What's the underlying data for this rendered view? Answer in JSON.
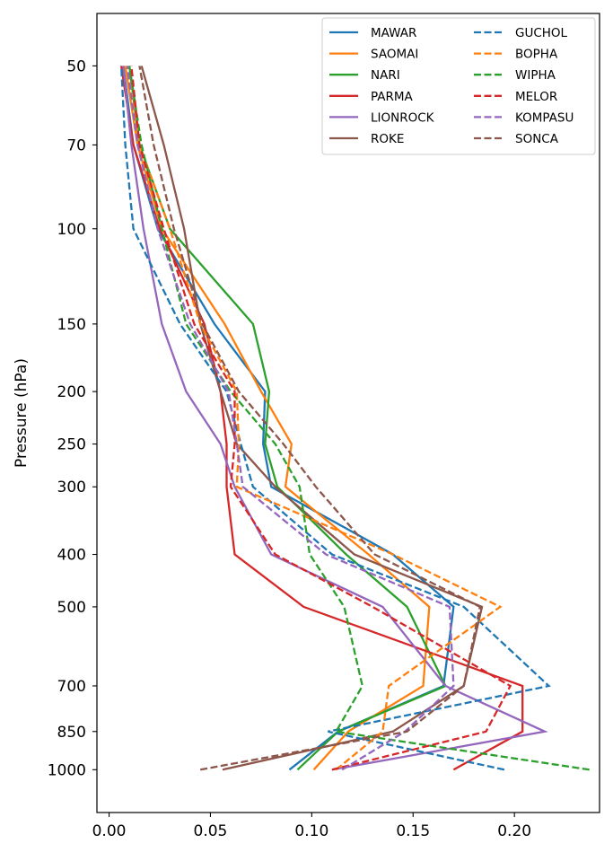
{
  "chart_data": {
    "type": "line",
    "title": "",
    "xlabel": "",
    "ylabel": "Pressure (hPa)",
    "xlim": [
      -0.006,
      0.242
    ],
    "ylim": [
      1200,
      40
    ],
    "yscale": "log",
    "xticks": [
      0.0,
      0.05,
      0.1,
      0.15,
      0.2
    ],
    "xtick_labels": [
      "0.00",
      "0.05",
      "0.10",
      "0.15",
      "0.20"
    ],
    "yticks": [
      50,
      70,
      100,
      150,
      200,
      250,
      300,
      400,
      500,
      700,
      850,
      1000
    ],
    "ytick_labels": [
      "50",
      "70",
      "100",
      "150",
      "200",
      "250",
      "300",
      "400",
      "500",
      "700",
      "850",
      "1000"
    ],
    "grid": false,
    "legend": {
      "placement": "top-right",
      "columns": 2
    },
    "pressure_levels": [
      1000,
      850,
      700,
      500,
      400,
      300,
      250,
      200,
      150,
      100,
      70,
      50
    ],
    "series": [
      {
        "name": "MAWAR",
        "color": "#1f77b4",
        "linestyle": "solid",
        "values": [
          0.089,
          0.113,
          0.165,
          0.17,
          0.14,
          0.08,
          0.076,
          0.077,
          0.052,
          0.024,
          0.012,
          0.007
        ]
      },
      {
        "name": "SAOMAI",
        "color": "#ff7f0e",
        "linestyle": "solid",
        "values": [
          0.101,
          0.118,
          0.155,
          0.158,
          0.128,
          0.087,
          0.09,
          0.075,
          0.057,
          0.026,
          0.014,
          0.008
        ]
      },
      {
        "name": "NARI",
        "color": "#2ca02c",
        "linestyle": "solid",
        "values": [
          0.093,
          0.113,
          0.166,
          0.147,
          0.117,
          0.083,
          0.077,
          0.079,
          0.071,
          0.03,
          0.015,
          0.01
        ]
      },
      {
        "name": "PARMA",
        "color": "#d62728",
        "linestyle": "solid",
        "values": [
          0.17,
          0.204,
          0.204,
          0.096,
          0.062,
          0.058,
          0.058,
          0.055,
          0.047,
          0.025,
          0.012,
          0.006
        ]
      },
      {
        "name": "LIONROCK",
        "color": "#9467bd",
        "linestyle": "solid",
        "values": [
          0.11,
          0.215,
          0.166,
          0.135,
          0.08,
          0.062,
          0.055,
          0.038,
          0.026,
          0.017,
          0.011,
          0.007
        ]
      },
      {
        "name": "ROKE",
        "color": "#8c564b",
        "linestyle": "solid",
        "values": [
          0.056,
          0.14,
          0.175,
          0.184,
          0.121,
          0.082,
          0.063,
          0.055,
          0.045,
          0.037,
          0.027,
          0.016
        ]
      },
      {
        "name": "GUCHOL",
        "color": "#1f77b4",
        "linestyle": "dashed",
        "values": [
          0.195,
          0.108,
          0.217,
          0.175,
          0.11,
          0.071,
          0.065,
          0.058,
          0.035,
          0.012,
          0.008,
          0.006
        ]
      },
      {
        "name": "BOPHA",
        "color": "#ff7f0e",
        "linestyle": "dashed",
        "values": [
          0.112,
          0.135,
          0.138,
          0.193,
          0.14,
          0.063,
          0.064,
          0.063,
          0.045,
          0.03,
          0.015,
          0.009
        ]
      },
      {
        "name": "WIPHA",
        "color": "#2ca02c",
        "linestyle": "dashed",
        "values": [
          0.237,
          0.112,
          0.125,
          0.116,
          0.099,
          0.094,
          0.082,
          0.06,
          0.038,
          0.026,
          0.016,
          0.01
        ]
      },
      {
        "name": "MELOR",
        "color": "#d62728",
        "linestyle": "dashed",
        "values": [
          0.11,
          0.186,
          0.198,
          0.13,
          0.082,
          0.06,
          0.062,
          0.062,
          0.042,
          0.027,
          0.015,
          0.011
        ]
      },
      {
        "name": "KOMPASU",
        "color": "#9467bd",
        "linestyle": "dashed",
        "values": [
          0.115,
          0.146,
          0.17,
          0.168,
          0.107,
          0.066,
          0.063,
          0.059,
          0.04,
          0.024,
          0.014,
          0.009
        ]
      },
      {
        "name": "SONCA",
        "color": "#8c564b",
        "linestyle": "dashed",
        "values": [
          0.045,
          0.147,
          0.175,
          0.183,
          0.131,
          0.102,
          0.086,
          0.064,
          0.046,
          0.032,
          0.022,
          0.015
        ]
      }
    ]
  }
}
